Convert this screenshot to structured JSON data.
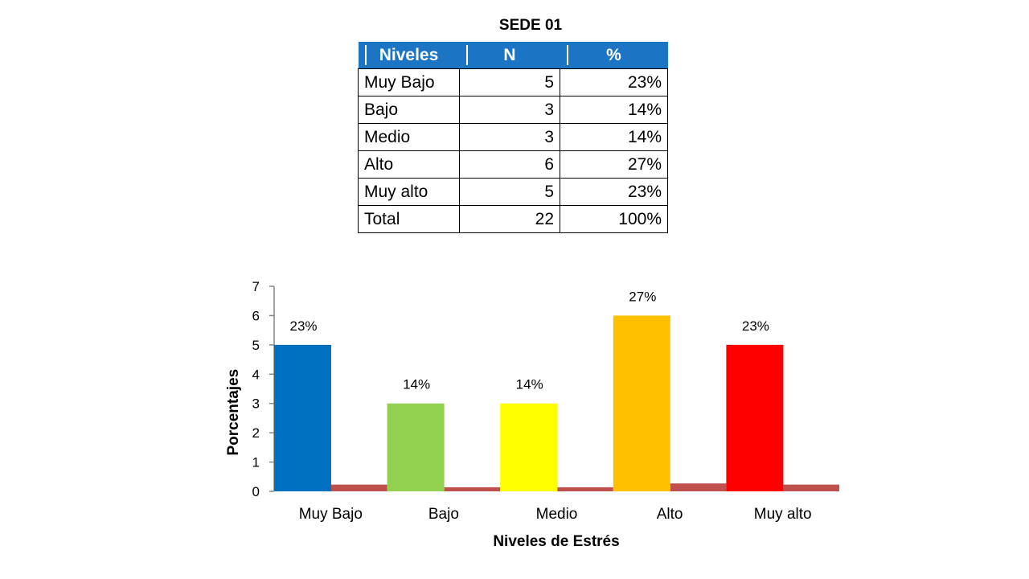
{
  "title": "SEDE 01",
  "table": {
    "headers": [
      "Niveles",
      "N",
      "%"
    ],
    "rows": [
      [
        "Muy Bajo",
        "5",
        "23%"
      ],
      [
        "Bajo",
        "3",
        "14%"
      ],
      [
        "Medio",
        "3",
        "14%"
      ],
      [
        "Alto",
        "6",
        "27%"
      ],
      [
        "Muy alto",
        "5",
        "23%"
      ],
      [
        "Total",
        "22",
        "100%"
      ]
    ]
  },
  "chart_data": {
    "type": "bar",
    "categories": [
      "Muy Bajo",
      "Bajo",
      "Medio",
      "Alto",
      "Muy alto"
    ],
    "series": [
      {
        "values": [
          5,
          3,
          3,
          6,
          5
        ]
      },
      {
        "values": [
          0.23,
          0.14,
          0.14,
          0.27,
          0.23
        ]
      }
    ],
    "data_labels": [
      "23%",
      "14%",
      "14%",
      "27%",
      "23%"
    ],
    "bar_colors": [
      "#0070c0",
      "#92d050",
      "#ffff00",
      "#ffc000",
      "#ff0000"
    ],
    "secondary_color": "#c0504d",
    "xlabel": "Niveles de Estrés",
    "ylabel": "Porcentajes",
    "ylim": [
      0,
      7
    ],
    "yticks": [
      "0",
      "1",
      "2",
      "3",
      "4",
      "5",
      "6",
      "7"
    ],
    "grid": false,
    "legend": "none"
  }
}
